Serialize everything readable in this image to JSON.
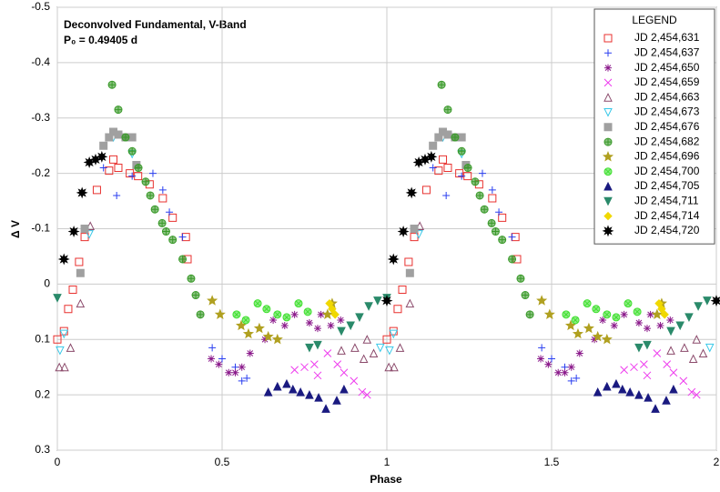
{
  "chart_data": {
    "type": "scatter",
    "title": "Deconvolved Fundamental, V-Band",
    "subtitle": "P₀ = 0.49405 d",
    "x_label": "Phase",
    "y_label": "Δ V",
    "xlim": [
      0,
      2
    ],
    "xticks": [
      0,
      0.5,
      1,
      1.5,
      2
    ],
    "ylim": [
      0.3,
      -0.5
    ],
    "yticks": [
      -0.5,
      -0.4,
      -0.3,
      -0.2,
      -0.1,
      0,
      0.1,
      0.2,
      0.3
    ],
    "grid": true,
    "legend_title": "LEGEND",
    "legend_position": "upper-right",
    "series": [
      {
        "name": "JD 2,454,631",
        "color": "#e8312f",
        "marker": "square-open",
        "x": [
          0,
          0.02,
          0.033,
          0.047,
          0.066,
          0.083,
          0.12,
          0.157,
          0.17,
          0.185,
          0.22,
          0.245,
          0.28,
          0.32,
          0.35,
          0.39,
          0.395,
          1,
          1.02,
          1.033,
          1.047,
          1.066,
          1.083,
          1.12,
          1.157,
          1.17,
          1.185,
          1.22,
          1.245,
          1.28,
          1.32,
          1.35,
          1.39,
          1.395
        ],
        "values": [
          0.1,
          0.085,
          0.045,
          0.01,
          -0.04,
          -0.085,
          -0.17,
          -0.205,
          -0.225,
          -0.21,
          -0.2,
          -0.195,
          -0.18,
          -0.155,
          -0.12,
          -0.085,
          -0.045,
          0.1,
          0.085,
          0.045,
          0.01,
          -0.04,
          -0.085,
          -0.17,
          -0.205,
          -0.225,
          -0.21,
          -0.2,
          -0.195,
          -0.18,
          -0.155,
          -0.12,
          -0.085,
          -0.045
        ]
      },
      {
        "name": "JD 2,454,637",
        "color": "#2a3ff0",
        "marker": "plus",
        "x": [
          0.14,
          0.18,
          0.227,
          0.29,
          0.32,
          0.34,
          0.38,
          0.47,
          0.5,
          0.54,
          0.56,
          0.575,
          1.14,
          1.18,
          1.227,
          1.29,
          1.32,
          1.34,
          1.38,
          1.47,
          1.5,
          1.54,
          1.56,
          1.575
        ],
        "values": [
          -0.21,
          -0.16,
          -0.195,
          -0.2,
          -0.17,
          -0.13,
          -0.085,
          0.115,
          0.135,
          0.15,
          0.175,
          0.17,
          -0.21,
          -0.16,
          -0.195,
          -0.2,
          -0.17,
          -0.13,
          -0.085,
          0.115,
          0.135,
          0.15,
          0.175,
          0.17
        ]
      },
      {
        "name": "JD 2,454,650",
        "color": "#8b1a8b",
        "marker": "asterisk",
        "x": [
          0.467,
          0.49,
          0.52,
          0.54,
          0.56,
          0.585,
          0.63,
          0.655,
          0.69,
          0.72,
          0.765,
          0.79,
          0.8,
          0.83,
          0.86,
          1.467,
          1.49,
          1.52,
          1.54,
          1.56,
          1.585,
          1.63,
          1.655,
          1.69,
          1.72,
          1.765,
          1.79,
          1.8,
          1.83,
          1.86
        ],
        "values": [
          0.135,
          0.145,
          0.16,
          0.16,
          0.15,
          0.125,
          0.1,
          0.065,
          0.075,
          0.055,
          0.07,
          0.08,
          0.055,
          0.075,
          0.065,
          0.135,
          0.145,
          0.16,
          0.16,
          0.15,
          0.125,
          0.1,
          0.065,
          0.075,
          0.055,
          0.07,
          0.08,
          0.055,
          0.075,
          0.065
        ]
      },
      {
        "name": "JD 2,454,659",
        "color": "#ee3bee",
        "marker": "x",
        "x": [
          0.72,
          0.75,
          0.78,
          0.79,
          0.82,
          0.85,
          0.87,
          0.9,
          0.925,
          0.94,
          1.72,
          1.75,
          1.78,
          1.79,
          1.82,
          1.85,
          1.87,
          1.9,
          1.925,
          1.94
        ],
        "values": [
          0.155,
          0.15,
          0.145,
          0.165,
          0.125,
          0.145,
          0.16,
          0.175,
          0.195,
          0.2,
          0.155,
          0.15,
          0.145,
          0.165,
          0.125,
          0.145,
          0.16,
          0.175,
          0.195,
          0.2
        ]
      },
      {
        "name": "JD 2,454,663",
        "color": "#8b4a6b",
        "marker": "triangle-open",
        "x": [
          0.006,
          0.022,
          0.04,
          0.07,
          0.1,
          0.862,
          0.903,
          0.93,
          0.96,
          0.94,
          1.006,
          1.022,
          1.04,
          1.07,
          1.1,
          1.862,
          1.903,
          1.93,
          1.96,
          1.94
        ],
        "values": [
          0.15,
          0.15,
          0.115,
          0.035,
          -0.105,
          0.12,
          0.115,
          0.135,
          0.125,
          0.1,
          0.15,
          0.15,
          0.115,
          0.035,
          -0.105,
          0.12,
          0.115,
          0.135,
          0.125,
          0.1
        ]
      },
      {
        "name": "JD 2,454,673",
        "color": "#38c8e8",
        "marker": "triangle-down-open",
        "x": [
          0.008,
          0.02,
          0.097,
          0.17,
          0.227,
          0.98,
          1.008,
          1.02,
          1.097,
          1.17,
          1.227,
          1.98
        ],
        "values": [
          0.12,
          0.09,
          -0.09,
          -0.265,
          -0.235,
          0.115,
          0.12,
          0.09,
          -0.09,
          -0.265,
          -0.235,
          0.115
        ]
      },
      {
        "name": "JD 2,454,676",
        "color": "#a0a0a0",
        "marker": "square",
        "x": [
          0.07,
          0.083,
          0.14,
          0.157,
          0.17,
          0.185,
          0.207,
          0.227,
          0.24,
          1.07,
          1.083,
          1.14,
          1.157,
          1.17,
          1.185,
          1.207,
          1.227,
          1.24
        ],
        "values": [
          -0.02,
          -0.1,
          -0.25,
          -0.265,
          -0.275,
          -0.27,
          -0.265,
          -0.265,
          -0.215,
          -0.02,
          -0.1,
          -0.25,
          -0.265,
          -0.275,
          -0.27,
          -0.265,
          -0.265,
          -0.215
        ]
      },
      {
        "name": "JD 2,454,682",
        "color": "#3a9a2a",
        "marker": "circle-plus",
        "x": [
          0.166,
          0.185,
          0.207,
          0.227,
          0.246,
          0.268,
          0.282,
          0.296,
          0.318,
          0.33,
          0.35,
          0.38,
          0.406,
          0.42,
          0.434,
          1.166,
          1.185,
          1.207,
          1.227,
          1.246,
          1.268,
          1.282,
          1.296,
          1.318,
          1.33,
          1.35,
          1.38,
          1.406,
          1.42,
          1.434
        ],
        "values": [
          -0.36,
          -0.315,
          -0.265,
          -0.24,
          -0.21,
          -0.185,
          -0.16,
          -0.135,
          -0.11,
          -0.095,
          -0.08,
          -0.045,
          -0.01,
          0.02,
          0.055,
          -0.36,
          -0.315,
          -0.265,
          -0.24,
          -0.21,
          -0.185,
          -0.16,
          -0.135,
          -0.11,
          -0.095,
          -0.08,
          -0.045,
          -0.01,
          0.02,
          0.055
        ]
      },
      {
        "name": "JD 2,454,696",
        "color": "#b0a020",
        "marker": "star",
        "x": [
          0.47,
          0.494,
          0.558,
          0.58,
          0.613,
          0.64,
          0.668,
          0.82,
          0.834,
          1.47,
          1.494,
          1.558,
          1.58,
          1.613,
          1.64,
          1.668,
          1.82,
          1.834
        ],
        "values": [
          0.03,
          0.055,
          0.075,
          0.09,
          0.08,
          0.095,
          0.1,
          0.055,
          0.035,
          0.03,
          0.055,
          0.075,
          0.09,
          0.08,
          0.095,
          0.1,
          0.055,
          0.035
        ]
      },
      {
        "name": "JD 2,454,700",
        "color": "#40e030",
        "marker": "circle-x",
        "x": [
          0.544,
          0.572,
          0.608,
          0.635,
          0.668,
          0.696,
          0.732,
          0.76,
          1.544,
          1.572,
          1.608,
          1.635,
          1.668,
          1.696,
          1.732,
          1.76
        ],
        "values": [
          0.055,
          0.065,
          0.035,
          0.045,
          0.055,
          0.06,
          0.035,
          0.05,
          0.055,
          0.065,
          0.035,
          0.045,
          0.055,
          0.06,
          0.035,
          0.05
        ]
      },
      {
        "name": "JD 2,454,705",
        "color": "#1a1a80",
        "marker": "triangle",
        "x": [
          0.64,
          0.668,
          0.696,
          0.715,
          0.738,
          0.765,
          0.793,
          0.815,
          0.848,
          0.87,
          1.64,
          1.668,
          1.696,
          1.715,
          1.738,
          1.765,
          1.793,
          1.815,
          1.848,
          1.87
        ],
        "values": [
          0.195,
          0.185,
          0.18,
          0.19,
          0.195,
          0.2,
          0.205,
          0.225,
          0.21,
          0.19,
          0.195,
          0.185,
          0.18,
          0.19,
          0.195,
          0.2,
          0.205,
          0.225,
          0.21,
          0.19
        ]
      },
      {
        "name": "JD 2,454,711",
        "color": "#2a8a6a",
        "marker": "triangle-down",
        "x": [
          0,
          0.765,
          0.79,
          0.862,
          0.89,
          0.917,
          0.945,
          0.972,
          1,
          1.765,
          1.79,
          1.862,
          1.89,
          1.917,
          1.945,
          1.972
        ],
        "values": [
          0.025,
          0.115,
          0.11,
          0.085,
          0.075,
          0.06,
          0.04,
          0.03,
          0.025,
          0.115,
          0.11,
          0.085,
          0.075,
          0.06,
          0.04,
          0.03
        ]
      },
      {
        "name": "JD 2,454,714",
        "color": "#f0d800",
        "marker": "diamond",
        "x": [
          0.826,
          0.834,
          0.843,
          1.826,
          1.834,
          1.843
        ],
        "values": [
          0.035,
          0.045,
          0.055,
          0.035,
          0.045,
          0.055
        ]
      },
      {
        "name": "JD 2,454,720",
        "color": "#000000",
        "marker": "burst",
        "x": [
          0.02,
          0.05,
          0.075,
          0.097,
          0.116,
          0.135,
          1,
          1.02,
          1.05,
          1.075,
          1.097,
          1.116,
          1.135,
          2
        ],
        "values": [
          -0.045,
          -0.095,
          -0.165,
          -0.22,
          -0.225,
          -0.23,
          0.03,
          -0.045,
          -0.095,
          -0.165,
          -0.22,
          -0.225,
          -0.23,
          0.03
        ]
      }
    ]
  }
}
